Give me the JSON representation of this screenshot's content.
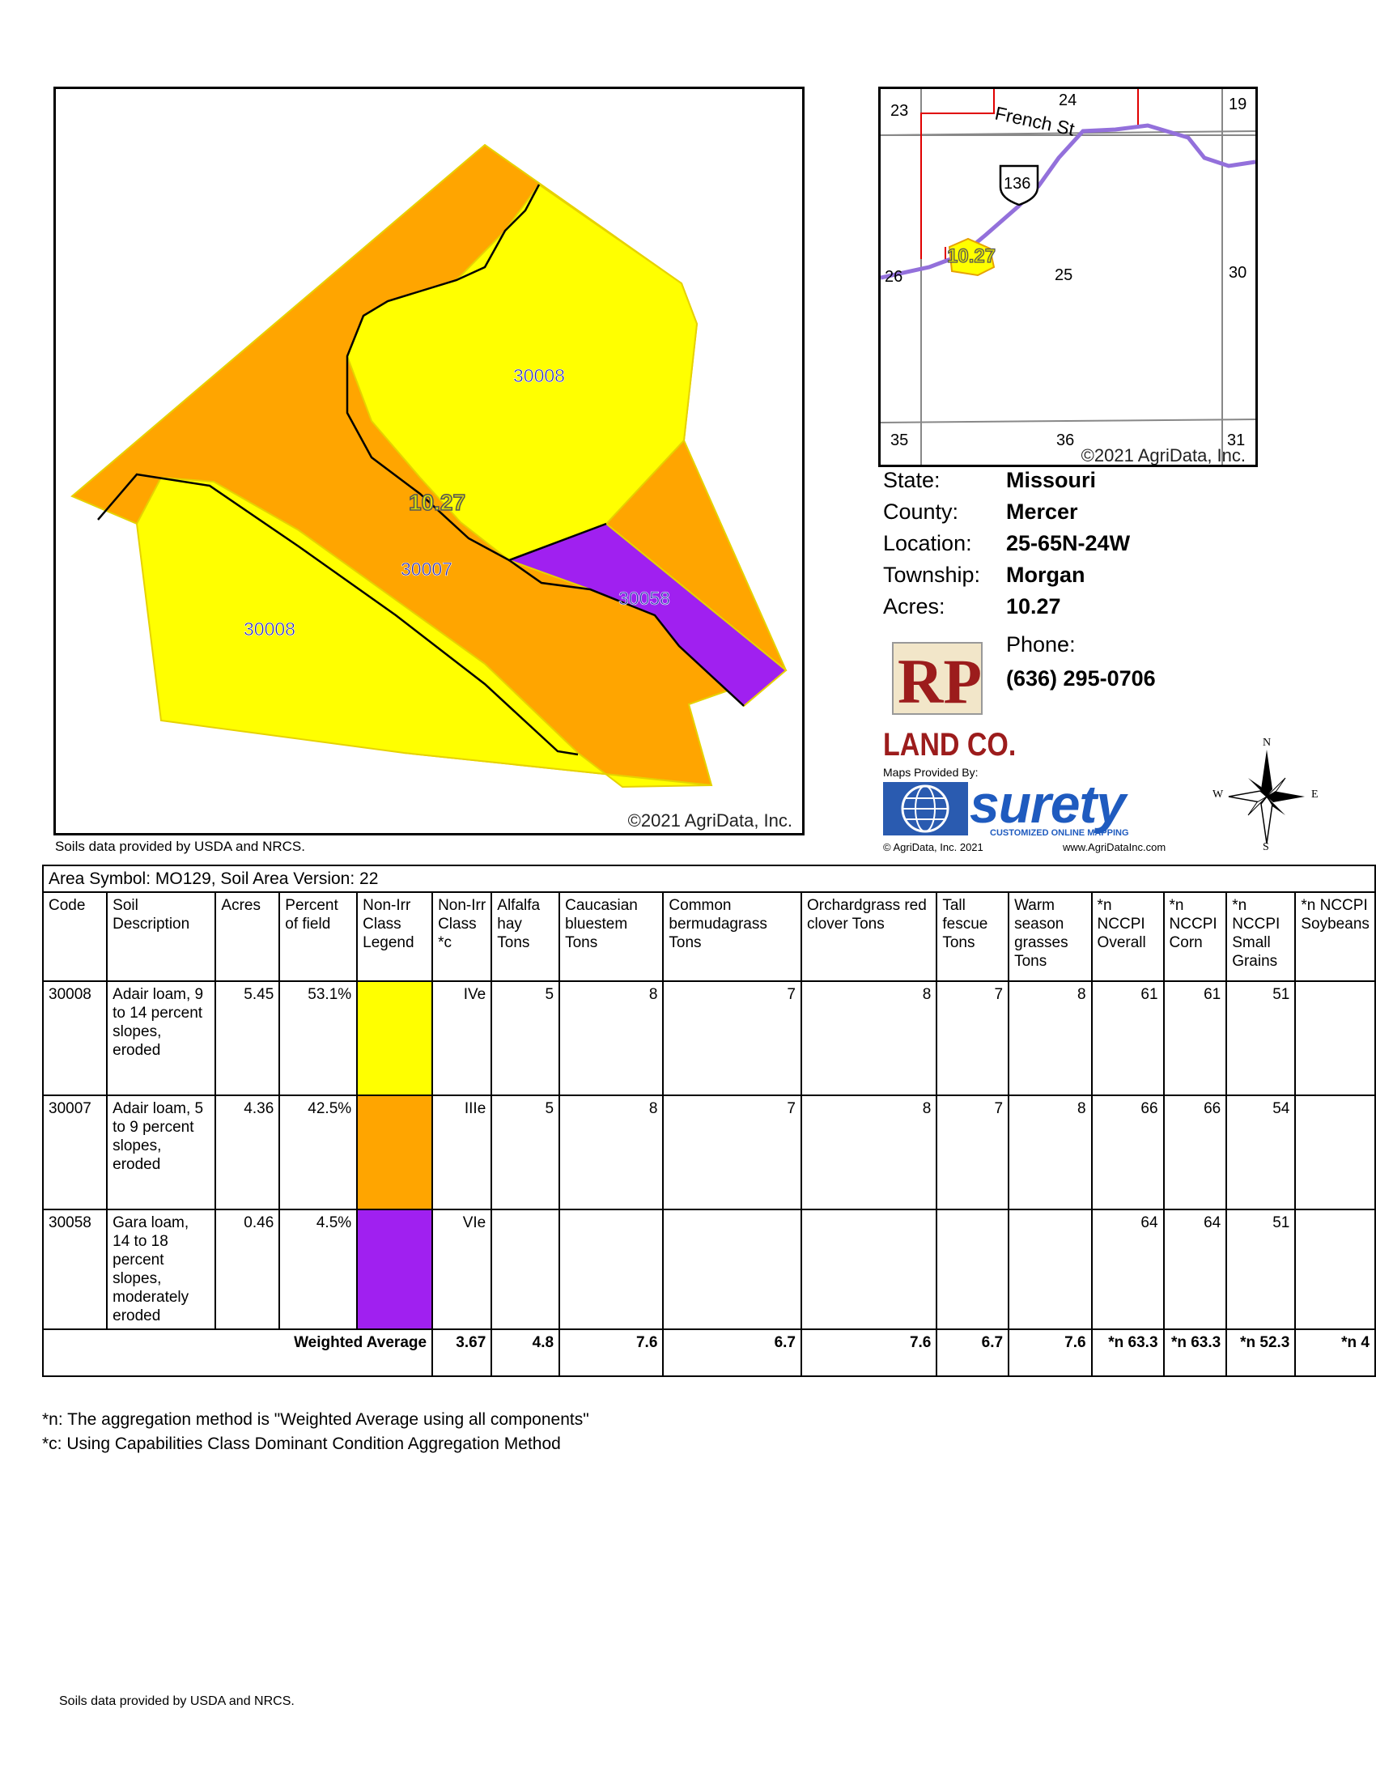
{
  "soil_map": {
    "copyright": "©2021 AgriData, Inc.",
    "field_label": "10.27",
    "soil_labels": [
      "30008",
      "30007",
      "30008",
      "30058"
    ]
  },
  "locator_map": {
    "road_name": "French St",
    "highway_number": "136",
    "field_label": "10.27",
    "section_numbers": [
      "23",
      "24",
      "19",
      "26",
      "25",
      "30",
      "35",
      "36",
      "31"
    ],
    "copyright": "©2021 AgriData, Inc."
  },
  "soils_credit_top": "Soils data provided by USDA and NRCS.",
  "soils_credit_bottom": "Soils data provided by USDA and NRCS.",
  "info": {
    "state_label": "State:",
    "state_value": "Missouri",
    "county_label": "County:",
    "county_value": "Mercer",
    "location_label": "Location:",
    "location_value": "25-65N-24W",
    "township_label": "Township:",
    "township_value": "Morgan",
    "acres_label": "Acres:",
    "acres_value": "10.27",
    "phone_label": "Phone:",
    "phone_value": "(636) 295-0706"
  },
  "logo": {
    "company": "LAND CO.",
    "maps_provided_by": "Maps Provided By:",
    "surety": "surety",
    "surety_tagline": "CUSTOMIZED ONLINE MAPPING",
    "agridata_copyright": "© AgriData, Inc. 2021",
    "agridata_url": "www.AgriDataInc.com"
  },
  "compass": {
    "n": "N",
    "s": "S",
    "e": "E",
    "w": "W"
  },
  "colors": {
    "yellow": "#ffff00",
    "orange": "#ffa500",
    "purple": "#a020f0",
    "road": "#9370db"
  },
  "table": {
    "area_symbol": "Area Symbol: MO129, Soil Area Version: 22",
    "headers": [
      "Code",
      "Soil Description",
      "Acres",
      "Percent of field",
      "Non-Irr Class Legend",
      "Non-Irr Class *c",
      "Alfalfa hay Tons",
      "Caucasian bluestem Tons",
      "Common bermudagrass Tons",
      "Orchardgrass red clover Tons",
      "Tall fescue Tons",
      "Warm season grasses Tons",
      "*n NCCPI Overall",
      "*n NCCPI Corn",
      "*n NCCPI Small Grains",
      "*n NCCPI Soybeans"
    ],
    "rows": [
      {
        "code": "30008",
        "description": "Adair loam, 9 to 14 percent slopes, eroded",
        "acres": "5.45",
        "percent": "53.1%",
        "legend_color": "#ffff00",
        "class": "IVe",
        "alfalfa": "5",
        "caucasian": "8",
        "bermuda": "7",
        "orchard": "8",
        "fescue": "7",
        "warm": "8",
        "overall": "61",
        "corn": "61",
        "small_grains": "51",
        "soybeans": ""
      },
      {
        "code": "30007",
        "description": "Adair loam, 5 to 9 percent slopes, eroded",
        "acres": "4.36",
        "percent": "42.5%",
        "legend_color": "#ffa500",
        "class": "IIIe",
        "alfalfa": "5",
        "caucasian": "8",
        "bermuda": "7",
        "orchard": "8",
        "fescue": "7",
        "warm": "8",
        "overall": "66",
        "corn": "66",
        "small_grains": "54",
        "soybeans": ""
      },
      {
        "code": "30058",
        "description": "Gara loam, 14 to 18 percent slopes, moderately eroded",
        "acres": "0.46",
        "percent": "4.5%",
        "legend_color": "#a020f0",
        "class": "VIe",
        "alfalfa": "",
        "caucasian": "",
        "bermuda": "",
        "orchard": "",
        "fescue": "",
        "warm": "",
        "overall": "64",
        "corn": "64",
        "small_grains": "51",
        "soybeans": ""
      }
    ],
    "weighted": {
      "label": "Weighted Average",
      "class": "3.67",
      "alfalfa": "4.8",
      "caucasian": "7.6",
      "bermuda": "6.7",
      "orchard": "7.6",
      "fescue": "6.7",
      "warm": "7.6",
      "overall": "*n 63.3",
      "corn": "*n 63.3",
      "small_grains": "*n 52.3",
      "soybeans": "*n 4"
    }
  },
  "footnotes": [
    "*n: The aggregation method is \"Weighted Average using all components\"",
    "*c:  Using Capabilities Class Dominant Condition Aggregation Method"
  ]
}
